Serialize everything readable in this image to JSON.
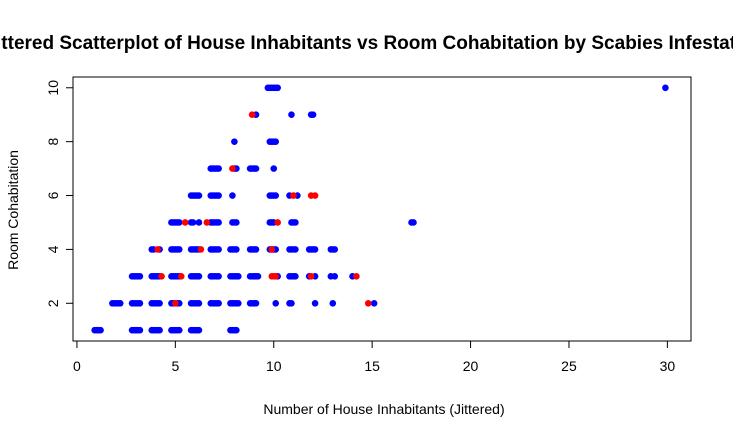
{
  "chart_data": {
    "type": "scatter",
    "title": "Jittered Scatterplot of House Inhabitants vs Room Cohabitation by Scabies Infestation",
    "xlabel": "Number of House Inhabitants (Jittered)",
    "ylabel": "Room Cohabitation",
    "xlim": [
      -0.2,
      31.2
    ],
    "ylim": [
      0.6,
      10.4
    ],
    "xticks": [
      0,
      5,
      10,
      15,
      20,
      25,
      30
    ],
    "yticks": [
      2,
      4,
      6,
      8,
      10
    ],
    "grid": false,
    "colors": {
      "infested": "#ff0000",
      "not_infested": "#0000ff"
    },
    "series": [
      {
        "color": "#0000ff",
        "points": [
          [
            0.9,
            1
          ],
          [
            1.0,
            1
          ],
          [
            1.1,
            1
          ],
          [
            1.2,
            1
          ],
          [
            2.8,
            1
          ],
          [
            2.9,
            1
          ],
          [
            3.0,
            1
          ],
          [
            3.1,
            1
          ],
          [
            3.2,
            1
          ],
          [
            3.8,
            1
          ],
          [
            3.9,
            1
          ],
          [
            4.0,
            1
          ],
          [
            4.1,
            1
          ],
          [
            4.2,
            1
          ],
          [
            4.8,
            1
          ],
          [
            4.9,
            1
          ],
          [
            5.0,
            1
          ],
          [
            5.1,
            1
          ],
          [
            5.2,
            1
          ],
          [
            5.8,
            1
          ],
          [
            5.9,
            1
          ],
          [
            6.0,
            1
          ],
          [
            6.1,
            1
          ],
          [
            6.2,
            1
          ],
          [
            7.8,
            1
          ],
          [
            7.9,
            1
          ],
          [
            8.0,
            1
          ],
          [
            8.1,
            1
          ],
          [
            1.8,
            2
          ],
          [
            1.9,
            2
          ],
          [
            2.0,
            2
          ],
          [
            2.1,
            2
          ],
          [
            2.2,
            2
          ],
          [
            2.8,
            2
          ],
          [
            2.9,
            2
          ],
          [
            3.0,
            2
          ],
          [
            3.1,
            2
          ],
          [
            3.2,
            2
          ],
          [
            3.8,
            2
          ],
          [
            3.9,
            2
          ],
          [
            4.0,
            2
          ],
          [
            4.1,
            2
          ],
          [
            4.2,
            2
          ],
          [
            4.8,
            2
          ],
          [
            4.9,
            2
          ],
          [
            5.1,
            2
          ],
          [
            5.2,
            2
          ],
          [
            5.8,
            2
          ],
          [
            5.9,
            2
          ],
          [
            6.0,
            2
          ],
          [
            6.1,
            2
          ],
          [
            6.2,
            2
          ],
          [
            6.8,
            2
          ],
          [
            6.9,
            2
          ],
          [
            7.0,
            2
          ],
          [
            7.1,
            2
          ],
          [
            7.2,
            2
          ],
          [
            7.8,
            2
          ],
          [
            7.9,
            2
          ],
          [
            8.0,
            2
          ],
          [
            8.1,
            2
          ],
          [
            8.2,
            2
          ],
          [
            8.8,
            2
          ],
          [
            8.9,
            2
          ],
          [
            9.0,
            2
          ],
          [
            9.1,
            2
          ],
          [
            10.1,
            2
          ],
          [
            10.8,
            2
          ],
          [
            10.9,
            2
          ],
          [
            12.1,
            2
          ],
          [
            13.0,
            2
          ],
          [
            15.1,
            2
          ],
          [
            2.8,
            3
          ],
          [
            2.9,
            3
          ],
          [
            3.0,
            3
          ],
          [
            3.1,
            3
          ],
          [
            3.2,
            3
          ],
          [
            3.8,
            3
          ],
          [
            3.9,
            3
          ],
          [
            4.0,
            3
          ],
          [
            4.1,
            3
          ],
          [
            4.2,
            3
          ],
          [
            4.8,
            3
          ],
          [
            4.9,
            3
          ],
          [
            5.0,
            3
          ],
          [
            5.1,
            3
          ],
          [
            5.2,
            3
          ],
          [
            5.8,
            3
          ],
          [
            5.9,
            3
          ],
          [
            6.0,
            3
          ],
          [
            6.1,
            3
          ],
          [
            6.2,
            3
          ],
          [
            6.8,
            3
          ],
          [
            6.9,
            3
          ],
          [
            7.0,
            3
          ],
          [
            7.1,
            3
          ],
          [
            7.2,
            3
          ],
          [
            7.8,
            3
          ],
          [
            7.9,
            3
          ],
          [
            8.0,
            3
          ],
          [
            8.1,
            3
          ],
          [
            8.2,
            3
          ],
          [
            8.8,
            3
          ],
          [
            8.9,
            3
          ],
          [
            9.0,
            3
          ],
          [
            9.1,
            3
          ],
          [
            9.2,
            3
          ],
          [
            10.2,
            3
          ],
          [
            10.8,
            3
          ],
          [
            10.9,
            3
          ],
          [
            11.0,
            3
          ],
          [
            11.1,
            3
          ],
          [
            11.8,
            3
          ],
          [
            12.1,
            3
          ],
          [
            12.9,
            3
          ],
          [
            13.1,
            3
          ],
          [
            14.0,
            3
          ],
          [
            3.8,
            4
          ],
          [
            3.9,
            4
          ],
          [
            4.2,
            4
          ],
          [
            4.8,
            4
          ],
          [
            4.9,
            4
          ],
          [
            5.0,
            4
          ],
          [
            5.1,
            4
          ],
          [
            5.2,
            4
          ],
          [
            5.8,
            4
          ],
          [
            5.9,
            4
          ],
          [
            6.0,
            4
          ],
          [
            6.1,
            4
          ],
          [
            6.2,
            4
          ],
          [
            6.8,
            4
          ],
          [
            6.9,
            4
          ],
          [
            7.0,
            4
          ],
          [
            7.1,
            4
          ],
          [
            7.2,
            4
          ],
          [
            7.8,
            4
          ],
          [
            7.9,
            4
          ],
          [
            8.0,
            4
          ],
          [
            8.1,
            4
          ],
          [
            8.8,
            4
          ],
          [
            8.9,
            4
          ],
          [
            9.0,
            4
          ],
          [
            9.1,
            4
          ],
          [
            9.8,
            4
          ],
          [
            9.9,
            4
          ],
          [
            10.0,
            4
          ],
          [
            10.1,
            4
          ],
          [
            10.8,
            4
          ],
          [
            10.9,
            4
          ],
          [
            11.0,
            4
          ],
          [
            11.1,
            4
          ],
          [
            11.8,
            4
          ],
          [
            11.9,
            4
          ],
          [
            12.0,
            4
          ],
          [
            12.1,
            4
          ],
          [
            12.9,
            4
          ],
          [
            13.0,
            4
          ],
          [
            13.1,
            4
          ],
          [
            4.8,
            5
          ],
          [
            4.9,
            5
          ],
          [
            5.0,
            5
          ],
          [
            5.1,
            5
          ],
          [
            5.2,
            5
          ],
          [
            5.8,
            5
          ],
          [
            5.9,
            5
          ],
          [
            6.2,
            5
          ],
          [
            6.8,
            5
          ],
          [
            6.9,
            5
          ],
          [
            7.0,
            5
          ],
          [
            7.1,
            5
          ],
          [
            7.2,
            5
          ],
          [
            7.9,
            5
          ],
          [
            8.0,
            5
          ],
          [
            8.1,
            5
          ],
          [
            9.8,
            5
          ],
          [
            9.9,
            5
          ],
          [
            10.0,
            5
          ],
          [
            10.9,
            5
          ],
          [
            11.0,
            5
          ],
          [
            11.1,
            5
          ],
          [
            17.0,
            5
          ],
          [
            17.1,
            5
          ],
          [
            5.8,
            6
          ],
          [
            5.9,
            6
          ],
          [
            6.0,
            6
          ],
          [
            6.1,
            6
          ],
          [
            6.2,
            6
          ],
          [
            6.8,
            6
          ],
          [
            6.9,
            6
          ],
          [
            7.0,
            6
          ],
          [
            7.1,
            6
          ],
          [
            7.2,
            6
          ],
          [
            7.9,
            6
          ],
          [
            9.8,
            6
          ],
          [
            9.9,
            6
          ],
          [
            10.0,
            6
          ],
          [
            10.1,
            6
          ],
          [
            10.8,
            6
          ],
          [
            11.2,
            6
          ],
          [
            6.8,
            7
          ],
          [
            6.9,
            7
          ],
          [
            7.0,
            7
          ],
          [
            7.1,
            7
          ],
          [
            7.2,
            7
          ],
          [
            8.0,
            7
          ],
          [
            8.1,
            7
          ],
          [
            8.8,
            7
          ],
          [
            8.9,
            7
          ],
          [
            9.0,
            7
          ],
          [
            9.1,
            7
          ],
          [
            10.0,
            7
          ],
          [
            8.0,
            8
          ],
          [
            9.8,
            8
          ],
          [
            9.9,
            8
          ],
          [
            10.0,
            8
          ],
          [
            10.1,
            8
          ],
          [
            9.1,
            9
          ],
          [
            10.9,
            9
          ],
          [
            11.9,
            9
          ],
          [
            12.0,
            9
          ],
          [
            9.7,
            10
          ],
          [
            9.8,
            10
          ],
          [
            9.9,
            10
          ],
          [
            10.0,
            10
          ],
          [
            10.1,
            10
          ],
          [
            10.2,
            10
          ],
          [
            29.9,
            10
          ]
        ]
      },
      {
        "color": "#ff0000",
        "points": [
          [
            5.0,
            2
          ],
          [
            14.8,
            2
          ],
          [
            4.3,
            3
          ],
          [
            5.3,
            3
          ],
          [
            9.9,
            3
          ],
          [
            10.0,
            3
          ],
          [
            10.1,
            3
          ],
          [
            11.9,
            3
          ],
          [
            14.2,
            3
          ],
          [
            4.1,
            4
          ],
          [
            6.3,
            4
          ],
          [
            9.9,
            4
          ],
          [
            5.5,
            5
          ],
          [
            6.6,
            5
          ],
          [
            10.2,
            5
          ],
          [
            11.0,
            6
          ],
          [
            11.9,
            6
          ],
          [
            12.1,
            6
          ],
          [
            7.9,
            7
          ],
          [
            8.9,
            9
          ]
        ]
      }
    ]
  }
}
